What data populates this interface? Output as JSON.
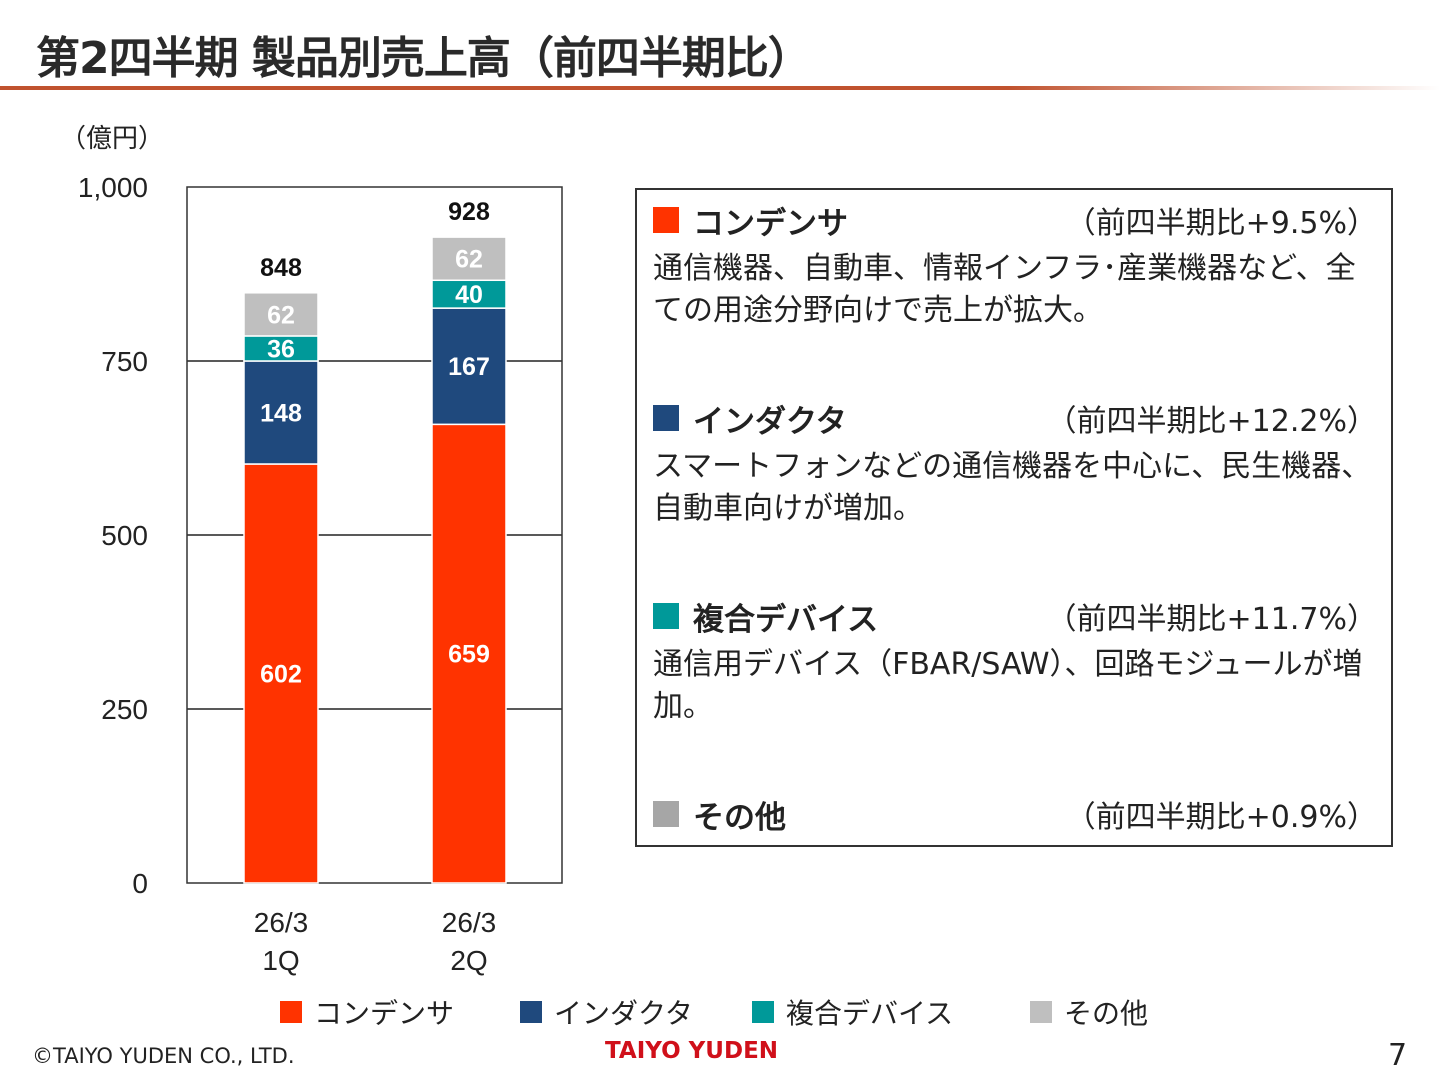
{
  "title": "第2四半期 製品別売上高（前四半期比）",
  "colors": {
    "condenser": "#FF3300",
    "inductor": "#1F497D",
    "composite": "#009999",
    "other": "#BFBFBF",
    "other_box": "#A6A6A6"
  },
  "chart_data": {
    "type": "bar",
    "stacked": true,
    "unit_label": "（億円）",
    "categories": [
      [
        "26/3",
        "1Q"
      ],
      [
        "26/3",
        "2Q"
      ]
    ],
    "ylim": [
      0,
      1000
    ],
    "yticks": [
      "0",
      "250",
      "500",
      "750",
      "1,000"
    ],
    "ytick_values": [
      0,
      250,
      500,
      750,
      1000
    ],
    "grid": true,
    "series": [
      {
        "name": "コンデンサ",
        "key": "condenser",
        "values": [
          602,
          659
        ]
      },
      {
        "name": "インダクタ",
        "key": "inductor",
        "values": [
          148,
          167
        ]
      },
      {
        "name": "複合デバイス",
        "key": "composite",
        "values": [
          36,
          40
        ]
      },
      {
        "name": "その他",
        "key": "other",
        "values": [
          62,
          62
        ]
      }
    ],
    "totals": [
      "848",
      "928"
    ],
    "legend": "bottom"
  },
  "panel": [
    {
      "name": "コンデンサ",
      "key": "condenser",
      "change": "（前四半期比+9.5%）",
      "desc": "通信機器、自動車、情報インフラ･産業機器など、全ての用途分野向けで売上が拡大。"
    },
    {
      "name": "インダクタ",
      "key": "inductor",
      "change": "（前四半期比+12.2%）",
      "desc": "スマートフォンなどの通信機器を中心に、民生機器、自動車向けが増加。"
    },
    {
      "name": "複合デバイス",
      "key": "composite",
      "change": "（前四半期比+11.7%）",
      "desc": "通信用デバイス（FBAR/SAW）、回路モジュールが増加。"
    },
    {
      "name": "その他",
      "key": "other_box",
      "change": "（前四半期比+0.9%）",
      "desc": ""
    }
  ],
  "footer": {
    "copyright": "©TAIYO YUDEN CO., LTD.",
    "logo": "TAIYO YUDEN",
    "page": "7"
  }
}
